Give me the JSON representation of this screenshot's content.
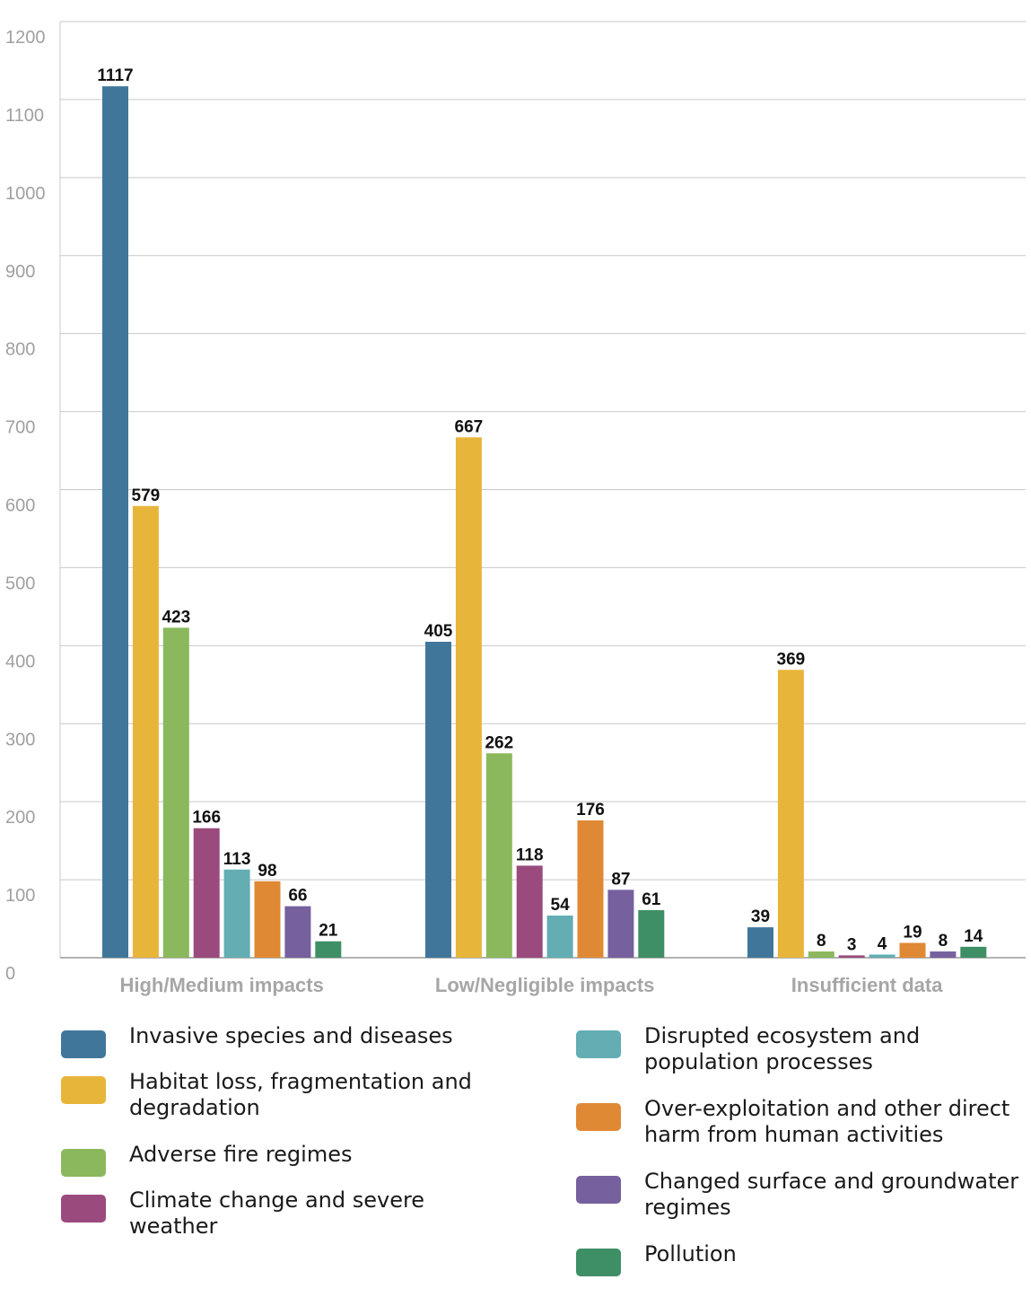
{
  "chart_data": {
    "type": "bar",
    "title": "",
    "xlabel": "",
    "ylabel": "",
    "ylim": [
      0,
      1200
    ],
    "yticks": [
      0,
      100,
      200,
      300,
      400,
      500,
      600,
      700,
      800,
      900,
      1000,
      1100,
      1200
    ],
    "grid": true,
    "legend_position": "bottom",
    "categories": [
      "High/Medium impacts",
      "Low/Negligible impacts",
      "Insufficient data"
    ],
    "series": [
      {
        "name": "Invasive species and diseases",
        "color": "#41769b",
        "values": [
          1117,
          405,
          39
        ]
      },
      {
        "name": "Habitat loss, fragmentation and degradation",
        "color": "#e8b53b",
        "values": [
          579,
          667,
          369
        ]
      },
      {
        "name": "Adverse fire regimes",
        "color": "#8bb85c",
        "values": [
          423,
          262,
          8
        ]
      },
      {
        "name": "Climate change and severe weather",
        "color": "#9b4a7d",
        "values": [
          166,
          118,
          3
        ]
      },
      {
        "name": "Disrupted ecosystem and population processes",
        "color": "#63adb3",
        "values": [
          113,
          54,
          4
        ]
      },
      {
        "name": "Over-exploitation and other direct harm from human activities",
        "color": "#e08934",
        "values": [
          98,
          176,
          19
        ]
      },
      {
        "name": "Changed surface and groundwater regimes",
        "color": "#76609e",
        "values": [
          66,
          87,
          8
        ]
      },
      {
        "name": "Pollution",
        "color": "#3f8f66",
        "values": [
          21,
          61,
          14
        ]
      }
    ]
  },
  "legend": {
    "left": [
      {
        "label": "Invasive species and diseases",
        "color": "#41769b"
      },
      {
        "label": "Habitat loss, fragmentation and degradation",
        "color": "#e8b53b"
      },
      {
        "label": "Adverse fire regimes",
        "color": "#8bb85c"
      },
      {
        "label": "Climate change and severe weather",
        "color": "#9b4a7d"
      }
    ],
    "right": [
      {
        "label": "Disrupted ecosystem and population processes",
        "color": "#63adb3"
      },
      {
        "label": "Over-exploitation and other direct harm from human activities",
        "color": "#e08934"
      },
      {
        "label": "Changed surface and groundwater regimes",
        "color": "#76609e"
      },
      {
        "label": "Pollution",
        "color": "#3f8f66"
      }
    ]
  }
}
